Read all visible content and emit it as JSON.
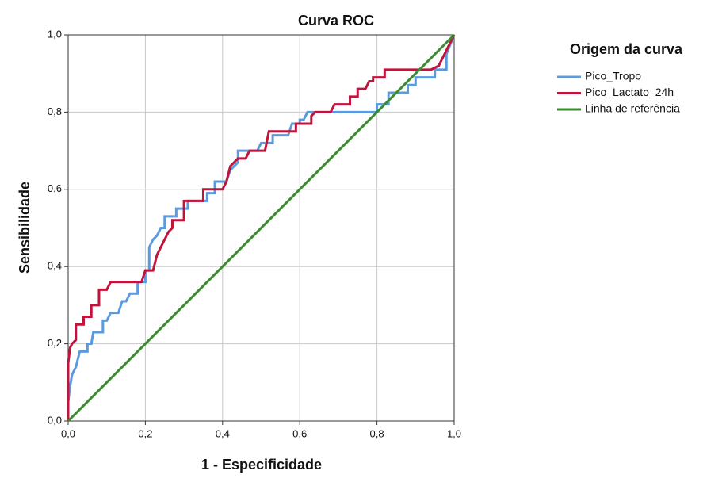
{
  "chart_data": {
    "type": "line",
    "title": "Curva ROC",
    "x_label": "1 - Especificidade",
    "y_label": "Sensibilidade",
    "legend_title": "Origem da curva",
    "legend": "right",
    "grid": true,
    "xlim": [
      0,
      1
    ],
    "ylim": [
      0,
      1
    ],
    "xticks": [
      {
        "value": 0,
        "label": "0,0"
      },
      {
        "value": 0.2,
        "label": "0,2"
      },
      {
        "value": 0.4,
        "label": "0,4"
      },
      {
        "value": 0.6,
        "label": "0,6"
      },
      {
        "value": 0.8,
        "label": "0,8"
      },
      {
        "value": 1,
        "label": "1,0"
      }
    ],
    "yticks": [
      {
        "value": 0,
        "label": "0,0"
      },
      {
        "value": 0.2,
        "label": "0,2"
      },
      {
        "value": 0.4,
        "label": "0,4"
      },
      {
        "value": 0.6,
        "label": "0,6"
      },
      {
        "value": 0.8,
        "label": "0,8"
      },
      {
        "value": 1,
        "label": "1,0"
      }
    ],
    "series": [
      {
        "name": "Pico_Tropo",
        "color": "#5a9be0",
        "x": [
          0,
          0,
          0.005,
          0.01,
          0.02,
          0.03,
          0.05,
          0.05,
          0.06,
          0.065,
          0.09,
          0.09,
          0.1,
          0.11,
          0.13,
          0.14,
          0.15,
          0.16,
          0.18,
          0.18,
          0.2,
          0.2,
          0.21,
          0.21,
          0.22,
          0.23,
          0.24,
          0.25,
          0.25,
          0.28,
          0.28,
          0.31,
          0.31,
          0.36,
          0.36,
          0.38,
          0.38,
          0.41,
          0.42,
          0.44,
          0.44,
          0.49,
          0.5,
          0.53,
          0.53,
          0.57,
          0.58,
          0.6,
          0.6,
          0.61,
          0.62,
          0.8,
          0.8,
          0.83,
          0.83,
          0.88,
          0.88,
          0.9,
          0.9,
          0.95,
          0.95,
          0.98,
          0.98,
          1
        ],
        "values": [
          0,
          0.05,
          0.09,
          0.12,
          0.14,
          0.18,
          0.18,
          0.2,
          0.2,
          0.23,
          0.23,
          0.26,
          0.26,
          0.28,
          0.28,
          0.31,
          0.31,
          0.33,
          0.33,
          0.36,
          0.36,
          0.39,
          0.39,
          0.45,
          0.47,
          0.48,
          0.5,
          0.5,
          0.53,
          0.53,
          0.55,
          0.55,
          0.57,
          0.57,
          0.59,
          0.59,
          0.62,
          0.62,
          0.65,
          0.67,
          0.7,
          0.7,
          0.72,
          0.72,
          0.74,
          0.74,
          0.77,
          0.77,
          0.78,
          0.78,
          0.8,
          0.8,
          0.82,
          0.82,
          0.85,
          0.85,
          0.87,
          0.87,
          0.89,
          0.89,
          0.91,
          0.91,
          0.95,
          1
        ]
      },
      {
        "name": "Pico_Lactato_24h",
        "color": "#c0143c",
        "x": [
          0,
          0,
          0.005,
          0.01,
          0.02,
          0.02,
          0.04,
          0.04,
          0.06,
          0.06,
          0.08,
          0.08,
          0.1,
          0.11,
          0.19,
          0.2,
          0.22,
          0.23,
          0.24,
          0.25,
          0.26,
          0.27,
          0.27,
          0.3,
          0.3,
          0.35,
          0.35,
          0.4,
          0.41,
          0.42,
          0.44,
          0.46,
          0.47,
          0.51,
          0.52,
          0.59,
          0.59,
          0.63,
          0.63,
          0.64,
          0.68,
          0.69,
          0.73,
          0.73,
          0.75,
          0.75,
          0.77,
          0.78,
          0.79,
          0.79,
          0.82,
          0.82,
          0.94,
          0.96,
          0.97,
          0.98,
          1
        ],
        "values": [
          0,
          0.15,
          0.19,
          0.2,
          0.21,
          0.25,
          0.25,
          0.27,
          0.27,
          0.3,
          0.3,
          0.34,
          0.34,
          0.36,
          0.36,
          0.39,
          0.39,
          0.43,
          0.45,
          0.47,
          0.49,
          0.5,
          0.52,
          0.52,
          0.57,
          0.57,
          0.6,
          0.6,
          0.62,
          0.66,
          0.68,
          0.68,
          0.7,
          0.7,
          0.75,
          0.75,
          0.77,
          0.77,
          0.79,
          0.8,
          0.8,
          0.82,
          0.82,
          0.84,
          0.84,
          0.86,
          0.86,
          0.88,
          0.88,
          0.89,
          0.89,
          0.91,
          0.91,
          0.92,
          0.94,
          0.96,
          1
        ]
      },
      {
        "name": "Linha de referência",
        "color": "#3a8a2e",
        "x": [
          0,
          1
        ],
        "values": [
          0,
          1
        ]
      }
    ]
  }
}
